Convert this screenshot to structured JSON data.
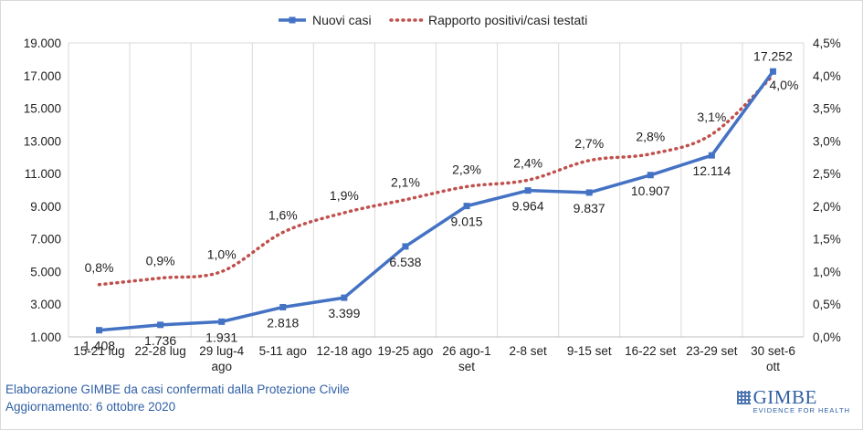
{
  "chart_data": {
    "type": "line",
    "categories": [
      "15-21 lug",
      "22-28 lug",
      "29 lug-4 ago",
      "5-11 ago",
      "12-18 ago",
      "19-25 ago",
      "26 ago-1 set",
      "2-8 set",
      "9-15 set",
      "16-22 set",
      "23-29 set",
      "30 set-6 ott"
    ],
    "series": [
      {
        "name": "Nuovi casi",
        "axis": "left",
        "style": "solid line with square markers",
        "color": "#4472c4",
        "values": [
          1408,
          1736,
          1931,
          2818,
          3399,
          6538,
          9015,
          9964,
          9837,
          10907,
          12114,
          17252
        ],
        "labels": [
          "1.408",
          "1.736",
          "1.931",
          "2.818",
          "3.399",
          "6.538",
          "9.015",
          "9.964",
          "9.837",
          "10.907",
          "12.114",
          "17.252"
        ]
      },
      {
        "name": "Rapporto positivi/casi testati",
        "axis": "right",
        "style": "dotted line",
        "color": "#c0504d",
        "values": [
          0.8,
          0.9,
          1.0,
          1.6,
          1.9,
          2.1,
          2.3,
          2.4,
          2.7,
          2.8,
          3.1,
          4.0
        ],
        "labels": [
          "0,8%",
          "0,9%",
          "1,0%",
          "1,6%",
          "1,9%",
          "2,1%",
          "2,3%",
          "2,4%",
          "2,7%",
          "2,8%",
          "3,1%",
          "4,0%"
        ]
      }
    ],
    "y_left": {
      "ylim": [
        1000,
        19000
      ],
      "ticks": [
        1000,
        3000,
        5000,
        7000,
        9000,
        11000,
        13000,
        15000,
        17000,
        19000
      ],
      "tick_labels": [
        "1.000",
        "3.000",
        "5.000",
        "7.000",
        "9.000",
        "11.000",
        "13.000",
        "15.000",
        "17.000",
        "19.000"
      ]
    },
    "y_right": {
      "ylim": [
        0,
        4.5
      ],
      "ticks": [
        0,
        0.5,
        1.0,
        1.5,
        2.0,
        2.5,
        3.0,
        3.5,
        4.0,
        4.5
      ],
      "tick_labels": [
        "0,0%",
        "0,5%",
        "1,0%",
        "1,5%",
        "2,0%",
        "2,5%",
        "3,0%",
        "3,5%",
        "4,0%",
        "4,5%"
      ]
    },
    "grid": "vertical",
    "legend_position": "top-center",
    "gridline_color": "#d9d9d9"
  },
  "source": {
    "line1": "Elaborazione GIMBE da casi confermati dalla Protezione Civile",
    "line2": "Aggiornamento: 6 ottobre 2020"
  },
  "logo": {
    "word": "GIMBE",
    "tagline": "EVIDENCE FOR HEALTH"
  }
}
